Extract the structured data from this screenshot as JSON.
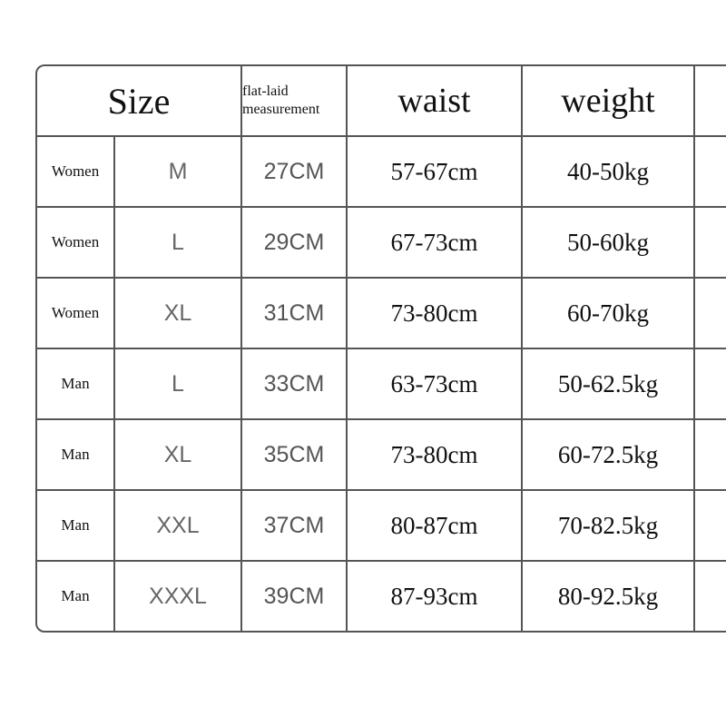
{
  "header": {
    "size": "Size",
    "flat_laid": "flat-laid measurement",
    "waist": "waist",
    "weight": "weight"
  },
  "rows": [
    {
      "gender": "Women",
      "size": "M",
      "flat": "27CM",
      "waist": "57-67cm",
      "weight": "40-50kg"
    },
    {
      "gender": "Women",
      "size": "L",
      "flat": "29CM",
      "waist": "67-73cm",
      "weight": "50-60kg"
    },
    {
      "gender": "Women",
      "size": "XL",
      "flat": "31CM",
      "waist": "73-80cm",
      "weight": "60-70kg"
    },
    {
      "gender": "Man",
      "size": "L",
      "flat": "33CM",
      "waist": "63-73cm",
      "weight": "50-62.5kg"
    },
    {
      "gender": "Man",
      "size": "XL",
      "flat": "35CM",
      "waist": "73-80cm",
      "weight": "60-72.5kg"
    },
    {
      "gender": "Man",
      "size": "XXL",
      "flat": "37CM",
      "waist": "80-87cm",
      "weight": "70-82.5kg"
    },
    {
      "gender": "Man",
      "size": "XXXL",
      "flat": "39CM",
      "waist": "87-93cm",
      "weight": "80-92.5kg"
    }
  ]
}
